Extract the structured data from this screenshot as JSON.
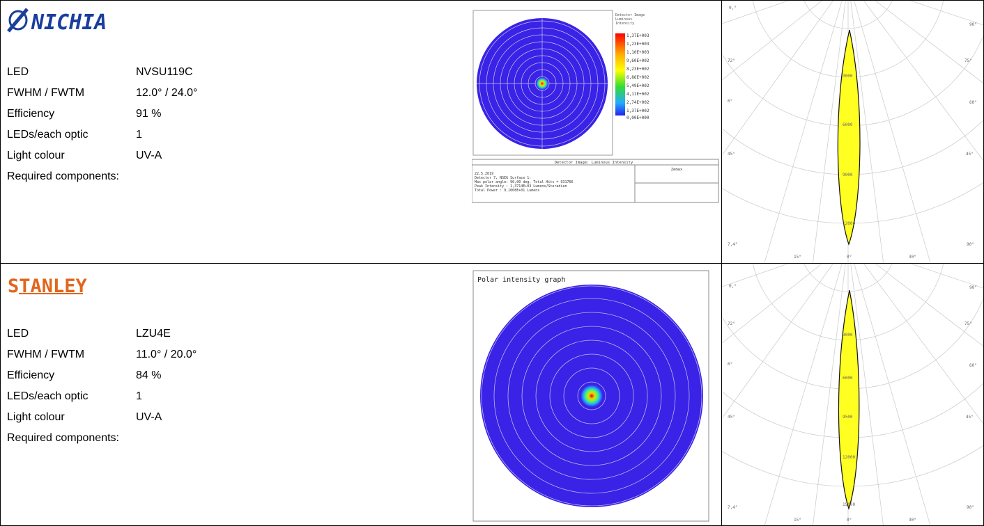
{
  "rows": [
    {
      "brand": "NICHIA",
      "specs": [
        {
          "key": "LED",
          "value": "NVSU119C"
        },
        {
          "key": "FWHM / FWTM",
          "value": "12.0° / 24.0°"
        },
        {
          "key": "Efficiency",
          "value": "91 %"
        },
        {
          "key": "LEDs/each optic",
          "value": "1"
        },
        {
          "key": "Light colour",
          "value": "UV-A"
        },
        {
          "key": "Required components:",
          "value": ""
        }
      ],
      "detector": {
        "title": "Detector Image: Luminous Intensity",
        "legend_header": [
          "Detector Image",
          "Luminous",
          "Intensity"
        ],
        "legend_values": [
          "1,37E+003",
          "1,23E+003",
          "1,10E+003",
          "9,60E+002",
          "8,23E+002",
          "6,86E+002",
          "5,49E+002",
          "4,11E+002",
          "2,74E+002",
          "1,37E+002",
          "0,00E+000"
        ],
        "info_lines": [
          "22.5.2019",
          "Detector 7, NSEG Surface 1:",
          "Max polar angle: 90,00 deg, Total Hits = 931766",
          "Peak Intensity   : 1,3714E+03 Lumens/Steradian",
          "Total Power      : 9,1008E+01 Lumens"
        ],
        "zemax": "Zemax"
      },
      "polar": {
        "angles_left": [
          "0,°",
          "72°",
          "6°",
          "45°",
          "7,4°"
        ],
        "angles_right": [
          "90°",
          "75°",
          "60°",
          "45°",
          "90°"
        ],
        "angles_bottom": [
          "15°",
          "0°",
          "30°"
        ],
        "ring_labels": [
          "3000",
          "6000",
          "9000",
          "12000"
        ]
      }
    },
    {
      "brand": "STANLEY",
      "specs": [
        {
          "key": "LED",
          "value": "LZU4E"
        },
        {
          "key": "FWHM / FWTM",
          "value": "11.0° / 20.0°"
        },
        {
          "key": "Efficiency",
          "value": "84 %"
        },
        {
          "key": "LEDs/each optic",
          "value": "1"
        },
        {
          "key": "Light colour",
          "value": "UV-A"
        },
        {
          "key": "Required components:",
          "value": ""
        }
      ],
      "detector": {
        "title": "Polar intensity graph"
      },
      "polar": {
        "angles_left": [
          "0,°",
          "72°",
          "6°",
          "45°",
          "7,4°"
        ],
        "angles_right": [
          "90°",
          "75°",
          "60°",
          "45°",
          "90°"
        ],
        "angles_bottom": [
          "15°",
          "0°",
          "30°"
        ],
        "ring_labels": [
          "3000",
          "6000",
          "9500",
          "12000",
          "15000"
        ]
      }
    }
  ],
  "colors": {
    "nichia_blue": "#1a3e9c",
    "stanley_orange": "#e0661c",
    "field_blue": "#3a22e6",
    "lobe_yellow": "#ffff22"
  }
}
